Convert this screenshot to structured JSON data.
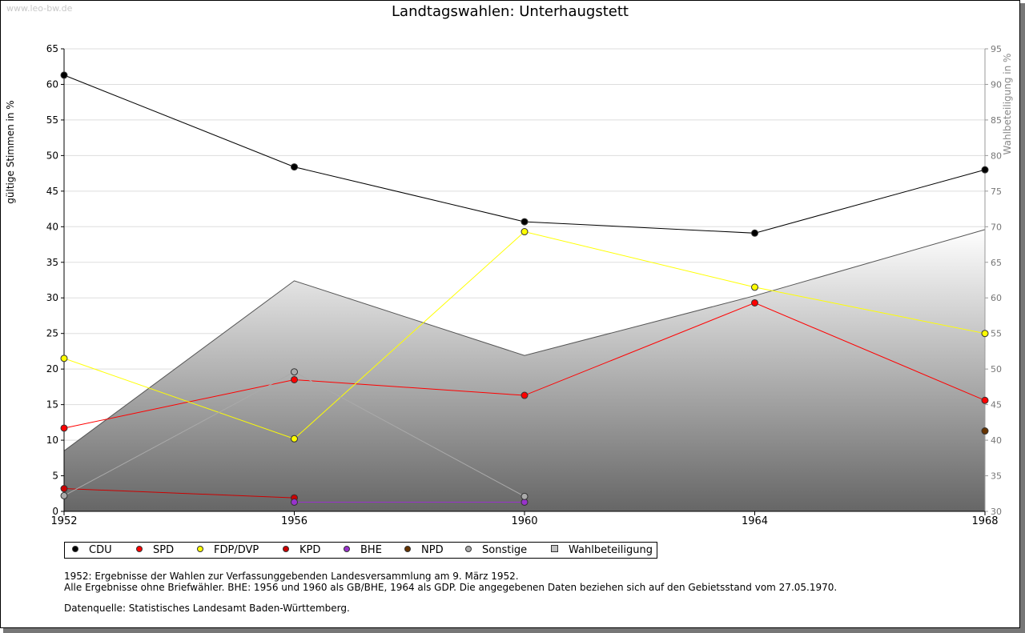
{
  "header": {
    "watermark": "www.leo-bw.de",
    "title": "Landtagswahlen: Unterhaugstett"
  },
  "chart_data": {
    "type": "line",
    "title": "Landtagswahlen: Unterhaugstett",
    "ylabel": "gültige Stimmen in %",
    "y2label": "Wahlbeteiligung in %",
    "x": [
      1952,
      1956,
      1960,
      1964,
      1968
    ],
    "x_ticks": [
      "1952",
      "1956",
      "1960",
      "1964",
      "1968"
    ],
    "ylim": [
      0,
      65
    ],
    "y_ticks": [
      "0",
      "5",
      "10",
      "15",
      "20",
      "25",
      "30",
      "35",
      "40",
      "45",
      "50",
      "55",
      "60",
      "65"
    ],
    "y2lim": [
      30,
      95
    ],
    "y2_ticks": [
      "30",
      "35",
      "40",
      "45",
      "50",
      "55",
      "60",
      "65",
      "70",
      "75",
      "80",
      "85",
      "90",
      "95"
    ],
    "series": [
      {
        "name": "CDU",
        "color": "#000000",
        "values": [
          61.3,
          48.4,
          40.7,
          39.1,
          48.0
        ]
      },
      {
        "name": "SPD",
        "color": "#ff0000",
        "values": [
          11.7,
          18.5,
          16.3,
          29.3,
          15.6
        ]
      },
      {
        "name": "FDP/DVP",
        "color": "#ffff00",
        "values": [
          21.5,
          10.2,
          39.3,
          31.5,
          25.0
        ]
      },
      {
        "name": "KPD",
        "color": "#cc0000",
        "values": [
          3.2,
          1.9,
          null,
          null,
          null
        ]
      },
      {
        "name": "BHE",
        "color": "#9933cc",
        "values": [
          null,
          1.3,
          1.3,
          null,
          null
        ]
      },
      {
        "name": "NPD",
        "color": "#663300",
        "values": [
          null,
          null,
          null,
          null,
          11.3
        ]
      },
      {
        "name": "Sonstige",
        "color": "#aaaaaa",
        "values": [
          2.2,
          19.6,
          2.1,
          null,
          null
        ]
      }
    ],
    "turnout": {
      "name": "Wahlbeteiligung",
      "axis": "right",
      "values": [
        38.5,
        62.4,
        51.9,
        60.3,
        69.6
      ]
    },
    "legend": [
      "CDU",
      "SPD",
      "FDP/DVP",
      "KPD",
      "BHE",
      "NPD",
      "Sonstige",
      "Wahlbeteiligung"
    ]
  },
  "notes": {
    "line1": "1952: Ergebnisse der Wahlen zur Verfassunggebenden Landesversammlung am 9. März 1952.",
    "line2": "Alle Ergebnisse ohne Briefwähler. BHE: 1956 und 1960 als GB/BHE, 1964 als GDP. Die angegebenen Daten beziehen sich auf den Gebietsstand vom 27.05.1970.",
    "line3": "Datenquelle: Statistisches Landesamt Baden-Württemberg."
  }
}
